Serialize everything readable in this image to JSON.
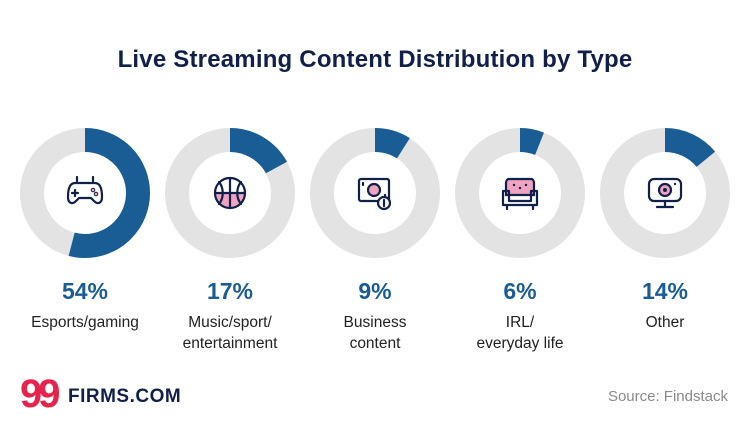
{
  "chart_data": {
    "type": "pie",
    "title": "Live Streaming Content Distribution by Type",
    "categories": [
      "Esports/gaming",
      "Music/sport/\nentertainment",
      "Business\ncontent",
      "IRL/\neveryday life",
      "Other"
    ],
    "values": [
      54,
      17,
      9,
      6,
      14
    ],
    "value_labels": [
      "54%",
      "17%",
      "9%",
      "6%",
      "14%"
    ],
    "icons": [
      "gamepad-icon",
      "basketball-icon",
      "money-icon",
      "armchair-icon",
      "webcam-icon"
    ],
    "colors": {
      "fill": "#1a5c94",
      "track": "#e3e3e3",
      "accent": "#f0a3c0",
      "icon_stroke": "#10204a"
    }
  },
  "brand": {
    "logo_mark": "99",
    "logo_text": "FIRMS.COM"
  },
  "source": "Source: Findstack"
}
